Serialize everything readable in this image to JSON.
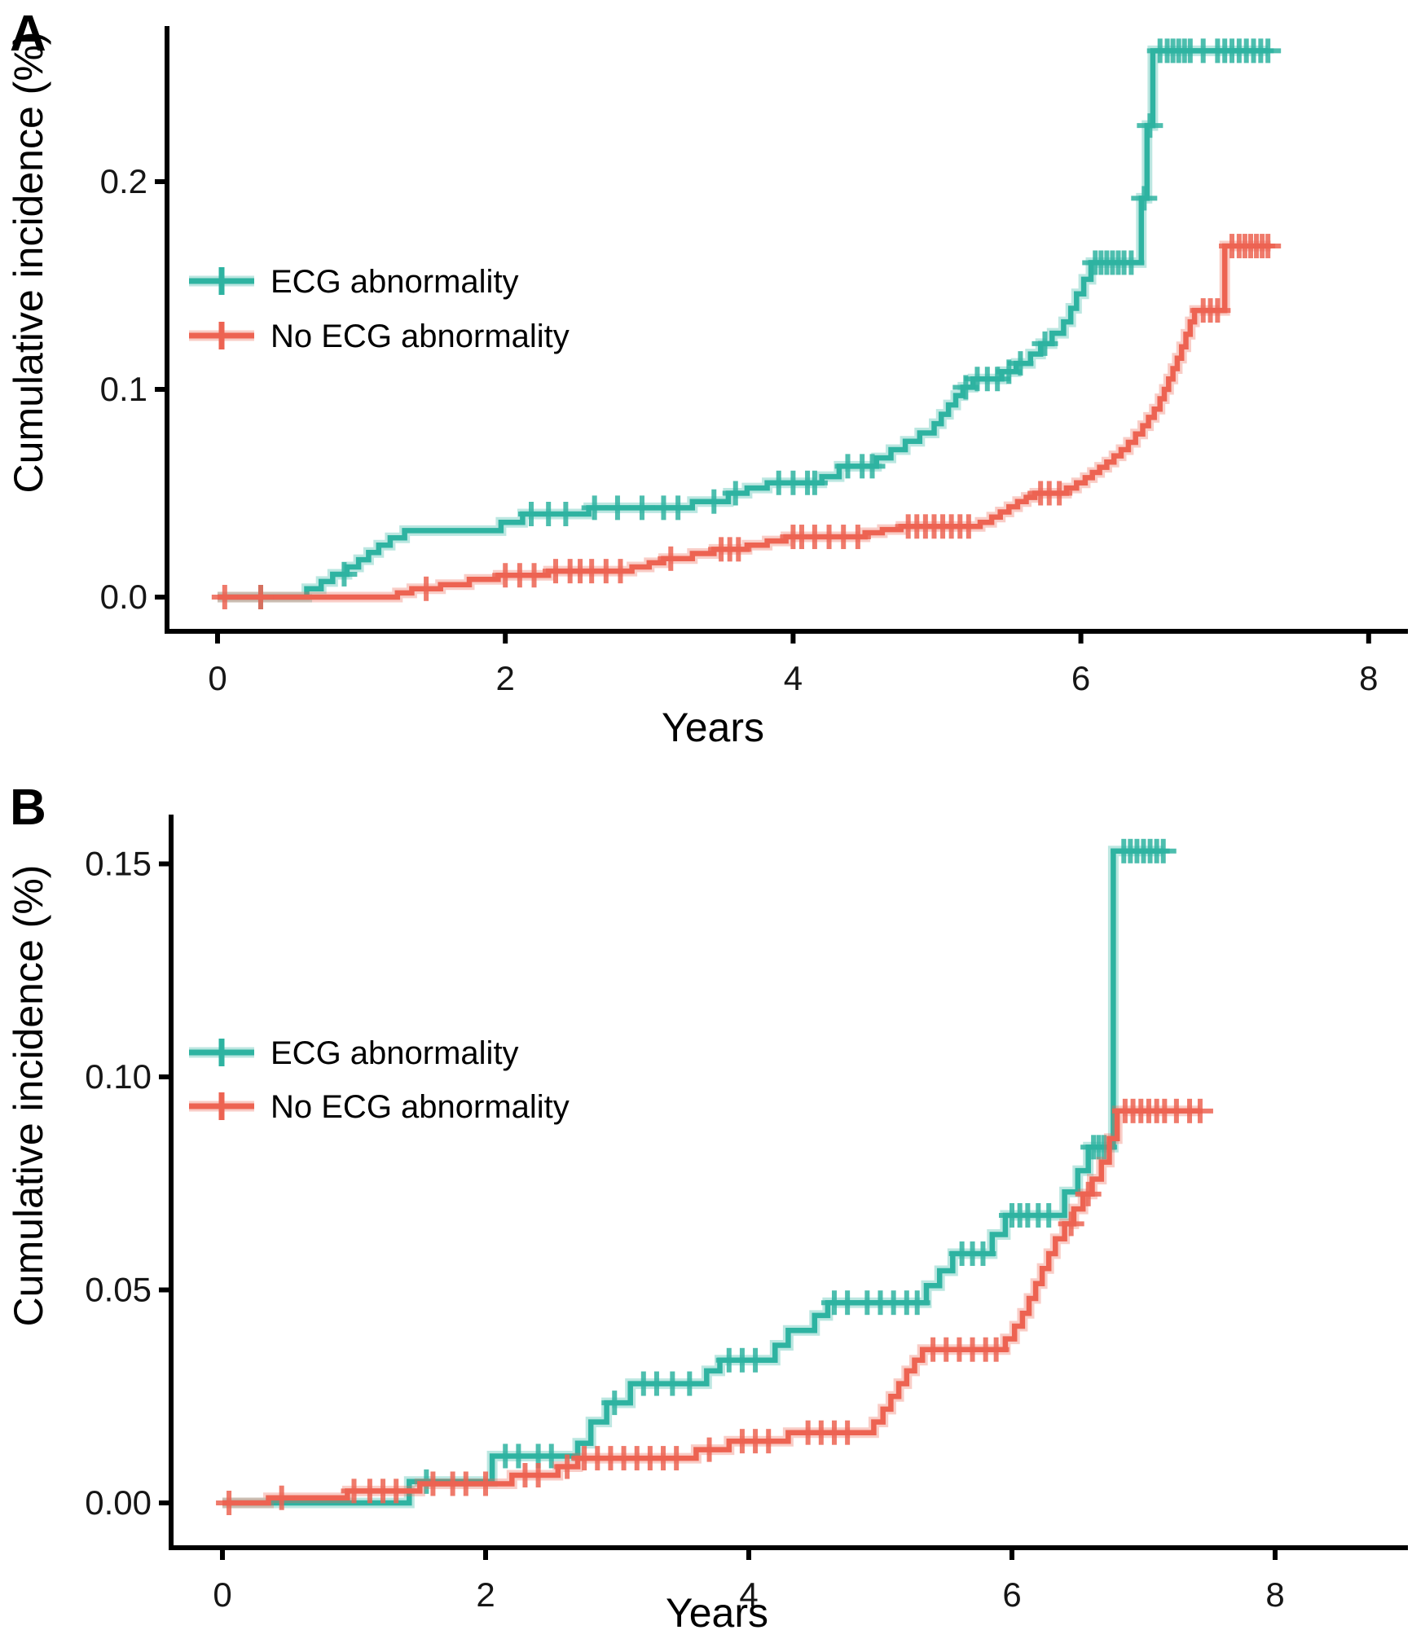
{
  "figure": {
    "background": "#ffffff",
    "axis_color": "#000000",
    "text_color": "#000000",
    "ecg_color": "#2eb3a1",
    "no_ecg_color": "#ed6352"
  },
  "chart_data": [
    {
      "panel_label": "A",
      "type": "line",
      "subtype": "step-cumulative-incidence",
      "xlabel": "Years",
      "ylabel": "Cumulative incidence (%)",
      "xlim": [
        0,
        8.3
      ],
      "ylim": [
        0,
        0.27
      ],
      "xticks": [
        0,
        2,
        4,
        6,
        8
      ],
      "xtick_labels": [
        "0",
        "2",
        "4",
        "6",
        "8"
      ],
      "ytick_values": [
        0,
        0.1,
        0.2
      ],
      "ytick_labels": [
        "0.0",
        "0.1",
        "0.2"
      ],
      "grid": false,
      "legend_position": "inside-upper-left",
      "series": [
        {
          "name": "ECG abnormality",
          "color": "#2eb3a1",
          "start": [
            0,
            0
          ],
          "end_time": 7.3,
          "steps": [
            [
              0.62,
              0.004
            ],
            [
              0.72,
              0.0075
            ],
            [
              0.8,
              0.011
            ],
            [
              0.9,
              0.0145
            ],
            [
              0.98,
              0.018
            ],
            [
              1.05,
              0.0215
            ],
            [
              1.12,
              0.025
            ],
            [
              1.2,
              0.0285
            ],
            [
              1.3,
              0.032
            ],
            [
              1.97,
              0.036
            ],
            [
              2.12,
              0.04
            ],
            [
              2.58,
              0.043
            ],
            [
              3.3,
              0.046
            ],
            [
              3.55,
              0.05
            ],
            [
              3.68,
              0.0525
            ],
            [
              3.82,
              0.055
            ],
            [
              4.2,
              0.058
            ],
            [
              4.32,
              0.063
            ],
            [
              4.58,
              0.067
            ],
            [
              4.68,
              0.071
            ],
            [
              4.78,
              0.075
            ],
            [
              4.88,
              0.079
            ],
            [
              4.98,
              0.0835
            ],
            [
              5.03,
              0.088
            ],
            [
              5.08,
              0.0925
            ],
            [
              5.13,
              0.097
            ],
            [
              5.18,
              0.101
            ],
            [
              5.25,
              0.105
            ],
            [
              5.45,
              0.1085
            ],
            [
              5.55,
              0.1125
            ],
            [
              5.65,
              0.117
            ],
            [
              5.72,
              0.122
            ],
            [
              5.8,
              0.127
            ],
            [
              5.88,
              0.1325
            ],
            [
              5.93,
              0.139
            ],
            [
              5.97,
              0.146
            ],
            [
              6.02,
              0.153
            ],
            [
              6.07,
              0.161
            ],
            [
              6.42,
              0.192
            ],
            [
              6.46,
              0.227
            ],
            [
              6.5,
              0.263
            ]
          ],
          "censor_times": [
            0.3,
            0.88,
            2.18,
            2.3,
            2.42,
            2.62,
            2.78,
            2.95,
            3.1,
            3.2,
            3.45,
            3.6,
            3.9,
            4.0,
            4.1,
            4.15,
            4.38,
            4.48,
            4.55,
            5.2,
            5.28,
            5.35,
            5.42,
            5.5,
            5.58,
            5.75,
            6.1,
            6.14,
            6.18,
            6.22,
            6.26,
            6.3,
            6.35,
            6.44,
            6.48,
            6.55,
            6.6,
            6.64,
            6.68,
            6.72,
            6.76,
            6.85,
            6.95,
            7.0,
            7.05,
            7.1,
            7.15,
            7.2,
            7.25,
            7.3
          ]
        },
        {
          "name": "No ECG abnormality",
          "color": "#ed6352",
          "start": [
            0,
            0
          ],
          "end_time": 7.32,
          "steps": [
            [
              1.25,
              0.002
            ],
            [
              1.35,
              0.004
            ],
            [
              1.55,
              0.006
            ],
            [
              1.75,
              0.0085
            ],
            [
              1.95,
              0.0105
            ],
            [
              2.3,
              0.0125
            ],
            [
              2.88,
              0.0145
            ],
            [
              3.0,
              0.0165
            ],
            [
              3.1,
              0.0185
            ],
            [
              3.3,
              0.021
            ],
            [
              3.45,
              0.023
            ],
            [
              3.68,
              0.025
            ],
            [
              3.82,
              0.027
            ],
            [
              3.95,
              0.029
            ],
            [
              4.5,
              0.031
            ],
            [
              4.62,
              0.0325
            ],
            [
              4.75,
              0.034
            ],
            [
              5.3,
              0.036
            ],
            [
              5.38,
              0.0385
            ],
            [
              5.44,
              0.041
            ],
            [
              5.5,
              0.0435
            ],
            [
              5.56,
              0.046
            ],
            [
              5.62,
              0.048
            ],
            [
              5.68,
              0.05
            ],
            [
              5.9,
              0.0525
            ],
            [
              5.97,
              0.055
            ],
            [
              6.03,
              0.0575
            ],
            [
              6.08,
              0.06
            ],
            [
              6.13,
              0.0625
            ],
            [
              6.18,
              0.065
            ],
            [
              6.23,
              0.068
            ],
            [
              6.28,
              0.071
            ],
            [
              6.33,
              0.0745
            ],
            [
              6.38,
              0.0785
            ],
            [
              6.43,
              0.0825
            ],
            [
              6.47,
              0.0865
            ],
            [
              6.51,
              0.0905
            ],
            [
              6.55,
              0.0955
            ],
            [
              6.58,
              0.1
            ],
            [
              6.61,
              0.105
            ],
            [
              6.64,
              0.11
            ],
            [
              6.67,
              0.115
            ],
            [
              6.7,
              0.1205
            ],
            [
              6.73,
              0.1265
            ],
            [
              6.76,
              0.1325
            ],
            [
              6.79,
              0.138
            ],
            [
              7.0,
              0.169
            ]
          ],
          "censor_times": [
            0.05,
            0.3,
            1.45,
            2.0,
            2.1,
            2.2,
            2.35,
            2.45,
            2.52,
            2.6,
            2.7,
            2.8,
            3.15,
            3.5,
            3.56,
            3.62,
            4.0,
            4.06,
            4.15,
            4.25,
            4.35,
            4.45,
            4.8,
            4.86,
            4.92,
            4.98,
            5.04,
            5.1,
            5.16,
            5.22,
            5.72,
            5.78,
            5.85,
            6.85,
            6.9,
            6.95,
            7.05,
            7.1,
            7.14,
            7.18,
            7.22,
            7.26,
            7.3
          ]
        }
      ]
    },
    {
      "panel_label": "B",
      "type": "line",
      "subtype": "step-cumulative-incidence",
      "xlabel": "Years",
      "ylabel": "Cumulative incidence (%)",
      "xlim": [
        0,
        8.3
      ],
      "ylim": [
        0,
        0.16
      ],
      "xticks": [
        0,
        2,
        4,
        6,
        8
      ],
      "xtick_labels": [
        "0",
        "2",
        "4",
        "6",
        "8"
      ],
      "ytick_values": [
        0,
        0.05,
        0.1,
        0.15
      ],
      "ytick_labels": [
        "0.00",
        "0.05",
        "0.10",
        "0.15"
      ],
      "grid": false,
      "legend_position": "inside-upper-left",
      "series": [
        {
          "name": "ECG abnormality",
          "color": "#2eb3a1",
          "start": [
            0,
            0
          ],
          "end_time": 7.15,
          "steps": [
            [
              1.42,
              0.005
            ],
            [
              2.05,
              0.011
            ],
            [
              2.7,
              0.014
            ],
            [
              2.8,
              0.019
            ],
            [
              2.92,
              0.0235
            ],
            [
              3.1,
              0.028
            ],
            [
              3.68,
              0.031
            ],
            [
              3.78,
              0.0335
            ],
            [
              4.2,
              0.037
            ],
            [
              4.3,
              0.0405
            ],
            [
              4.5,
              0.044
            ],
            [
              4.6,
              0.047
            ],
            [
              5.35,
              0.051
            ],
            [
              5.45,
              0.0545
            ],
            [
              5.55,
              0.0585
            ],
            [
              5.85,
              0.063
            ],
            [
              5.95,
              0.0675
            ],
            [
              6.4,
              0.073
            ],
            [
              6.5,
              0.078
            ],
            [
              6.58,
              0.0835
            ],
            [
              6.77,
              0.153
            ]
          ],
          "censor_times": [
            1.55,
            2.15,
            2.25,
            2.4,
            2.5,
            2.98,
            3.2,
            3.3,
            3.42,
            3.55,
            3.85,
            3.95,
            4.05,
            4.65,
            4.75,
            4.9,
            5.0,
            5.1,
            5.2,
            5.28,
            5.62,
            5.7,
            5.78,
            6.0,
            6.06,
            6.12,
            6.2,
            6.28,
            6.62,
            6.66,
            6.7,
            6.85,
            6.9,
            6.95,
            7.0,
            7.05,
            7.1,
            7.15
          ]
        },
        {
          "name": "No ECG abnormality",
          "color": "#ed6352",
          "start": [
            0,
            0
          ],
          "end_time": 7.43,
          "steps": [
            [
              0.35,
              0.0012
            ],
            [
              0.95,
              0.0028
            ],
            [
              1.5,
              0.0045
            ],
            [
              2.2,
              0.0065
            ],
            [
              2.55,
              0.0085
            ],
            [
              2.7,
              0.0105
            ],
            [
              3.6,
              0.0125
            ],
            [
              3.85,
              0.0145
            ],
            [
              4.3,
              0.0165
            ],
            [
              4.95,
              0.019
            ],
            [
              5.02,
              0.022
            ],
            [
              5.08,
              0.025
            ],
            [
              5.14,
              0.028
            ],
            [
              5.2,
              0.031
            ],
            [
              5.26,
              0.0335
            ],
            [
              5.32,
              0.036
            ],
            [
              5.95,
              0.0385
            ],
            [
              6.02,
              0.0415
            ],
            [
              6.08,
              0.0445
            ],
            [
              6.13,
              0.048
            ],
            [
              6.18,
              0.0515
            ],
            [
              6.23,
              0.055
            ],
            [
              6.28,
              0.0585
            ],
            [
              6.33,
              0.062
            ],
            [
              6.4,
              0.0655
            ],
            [
              6.47,
              0.069
            ],
            [
              6.54,
              0.0725
            ],
            [
              6.61,
              0.076
            ],
            [
              6.68,
              0.08
            ],
            [
              6.74,
              0.0855
            ],
            [
              6.8,
              0.092
            ]
          ],
          "censor_times": [
            0.05,
            0.45,
            1.0,
            1.12,
            1.22,
            1.32,
            1.6,
            1.75,
            1.85,
            2.0,
            2.3,
            2.4,
            2.62,
            2.75,
            2.85,
            2.95,
            3.05,
            3.15,
            3.25,
            3.35,
            3.45,
            3.7,
            3.95,
            4.05,
            4.15,
            4.45,
            4.55,
            4.65,
            4.75,
            5.4,
            5.5,
            5.6,
            5.7,
            5.8,
            5.88,
            6.45,
            6.58,
            6.86,
            6.92,
            6.98,
            7.04,
            7.1,
            7.16,
            7.25,
            7.35,
            7.43
          ]
        }
      ]
    }
  ]
}
